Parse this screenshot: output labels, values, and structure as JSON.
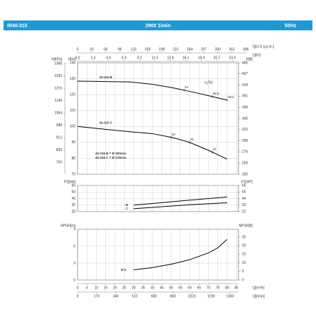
{
  "header": {
    "model": "IR40-315",
    "speed": "2900 1/min",
    "frequency": "50Hz"
  },
  "x_axes": [
    {
      "label": "Q[U.S g.p.m.]",
      "xlim": [
        0,
        396
      ],
      "xticks": [
        0,
        33,
        66,
        99,
        132,
        165,
        198,
        231,
        264,
        297,
        330,
        363,
        396
      ]
    },
    {
      "label": "Q[l/s]",
      "xlim": [
        0,
        23
      ],
      "xticks": [
        {
          "value": 0,
          "label": "0.0"
        },
        2.3,
        4.6,
        6.9,
        9.2,
        11.5,
        13.8,
        16.1,
        18.4,
        20.7,
        {
          "value": 23,
          "label": "23.0"
        }
      ]
    },
    {
      "label": "Q[m³/h]",
      "xlim": [
        0,
        85
      ],
      "xticks": [
        0,
        5,
        10,
        15,
        20,
        25,
        30,
        35,
        40,
        45,
        50,
        55,
        60,
        65,
        70,
        75,
        80,
        85
      ]
    },
    {
      "label": "Q[l/min]",
      "xlim": [
        0,
        1360
      ],
      "xticks": [
        0,
        170,
        340,
        510,
        680,
        850,
        1020,
        1190,
        1360
      ]
    }
  ],
  "chart_data": [
    {
      "type": "line",
      "ylabel": "H[m]",
      "ylim": [
        70,
        140
      ],
      "yticks": [
        70,
        80,
        90,
        100,
        110,
        120,
        130,
        140
      ],
      "y_outer": {
        "label": "H[kPa]",
        "lim": [
          686,
          1373
        ],
        "ticks": [
          760,
          836,
          912,
          988,
          1064,
          1140,
          1216,
          1292,
          1368
        ]
      },
      "y2label": "H[ft]",
      "y2lim": [
        230,
        460
      ],
      "y2ticks": [
        230,
        253,
        276,
        299,
        322,
        345,
        368,
        391,
        414,
        437,
        460
      ],
      "eta_label": "η [%]",
      "notes": [
        "40-315 B = Ø 300mm",
        "40-315 C = Ø 275mm"
      ],
      "series": [
        {
          "name": "40-315 B",
          "color": "#000000",
          "x": [
            0,
            10,
            20,
            28,
            40,
            50,
            57,
            65,
            72,
            80
          ],
          "values": [
            128.5,
            128.3,
            128.1,
            128,
            126.5,
            124.5,
            122.8,
            120.7,
            118.8,
            116.5
          ],
          "efficiency": [
            {
              "label": "54",
              "x": 57
            },
            {
              "label": "59.5",
              "x": 72
            },
            {
              "label": "58.5",
              "x": 80
            }
          ]
        },
        {
          "name": "40-315 C",
          "color": "#000000",
          "x": [
            0,
            10,
            20,
            30,
            40,
            50,
            53,
            60,
            70,
            80
          ],
          "values": [
            100,
            98.8,
            97.6,
            96.5,
            95.5,
            93.2,
            92.3,
            90,
            85,
            79.5
          ],
          "efficiency": [
            {
              "label": "50",
              "x": 50
            },
            {
              "label": "52",
              "x": 60
            },
            {
              "label": "54",
              "x": 72
            }
          ]
        }
      ]
    },
    {
      "type": "line",
      "ylabel": "P2[kW]",
      "ylim": [
        20,
        60
      ],
      "yticks": [
        20,
        30,
        40,
        50,
        60
      ],
      "y2label": "P2[HP]",
      "y2lim": [
        22,
        66
      ],
      "y2ticks": [
        22,
        33,
        44,
        55,
        66
      ],
      "series": [
        {
          "name": "B",
          "color": "#000000",
          "x": [
            30,
            40,
            50,
            60,
            70,
            80
          ],
          "values": [
            30,
            32.5,
            35,
            37.5,
            40,
            42.5
          ]
        },
        {
          "name": "C",
          "color": "#000000",
          "x": [
            30,
            40,
            50,
            60,
            70,
            80
          ],
          "values": [
            24.5,
            26.5,
            28.5,
            30.5,
            32,
            33.5
          ]
        }
      ]
    },
    {
      "type": "line",
      "ylabel": "NPSH[m]",
      "ylim": [
        0,
        9
      ],
      "yticks": [
        0,
        3,
        6,
        9
      ],
      "y2label": "NPSH[ft]",
      "y2lim": [
        0,
        29.5
      ],
      "y2ticks": [
        0,
        5,
        10,
        15,
        20,
        25
      ],
      "series": [
        {
          "name": "B-C",
          "color": "#000000",
          "x": [
            30,
            40,
            50,
            60,
            70,
            75,
            80
          ],
          "values": [
            1.8,
            2.2,
            2.8,
            3.6,
            4.8,
            5.7,
            7.2
          ]
        }
      ]
    }
  ]
}
